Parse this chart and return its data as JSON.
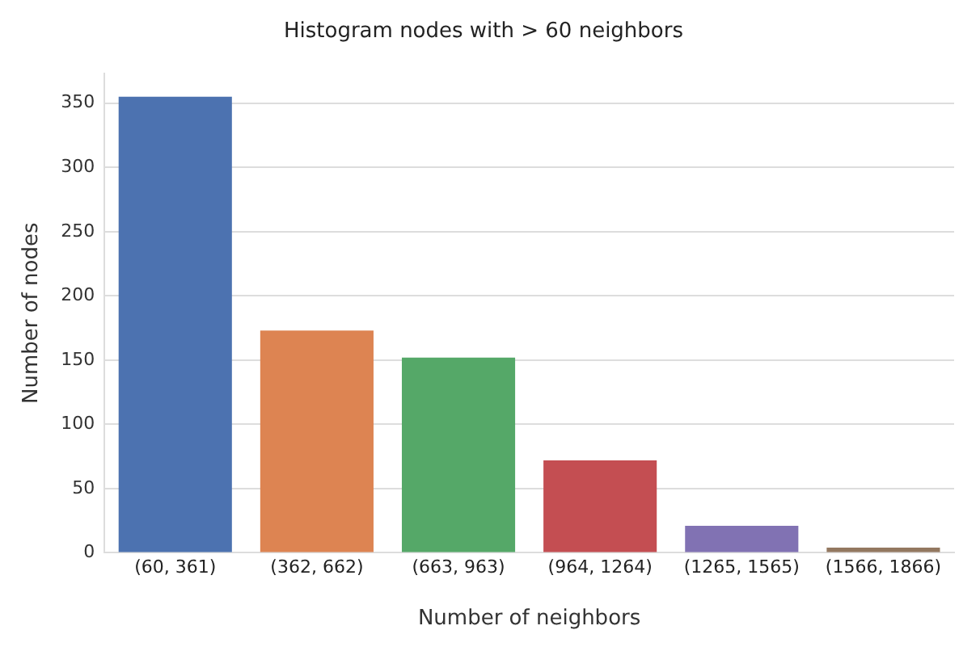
{
  "chart_data": {
    "type": "bar",
    "title": "Histogram nodes with > 60 neighbors",
    "xlabel": "Number of neighbors",
    "ylabel": "Number of nodes",
    "categories": [
      "(60, 361)",
      "(362, 662)",
      "(663, 963)",
      "(964, 1264)",
      "(1265, 1565)",
      "(1566, 1866)"
    ],
    "values": [
      355,
      173,
      152,
      72,
      21,
      4
    ],
    "colors": [
      "#4c72b0",
      "#dd8452",
      "#55a868",
      "#c44e52",
      "#8172b3",
      "#937860"
    ],
    "ylim": [
      0,
      373
    ],
    "yticks": [
      0,
      50,
      100,
      150,
      200,
      250,
      300,
      350
    ],
    "grid": "y",
    "legend": false
  }
}
